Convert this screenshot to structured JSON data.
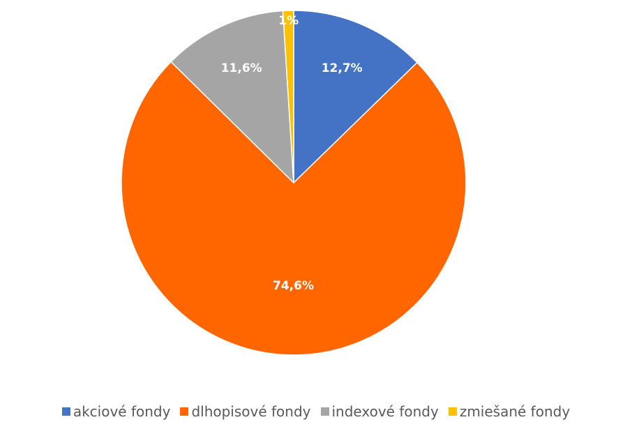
{
  "chart_data": {
    "type": "pie",
    "categories": [
      "akciové fondy",
      "dlhopisové fondy",
      "indexové fondy",
      "zmiešané fondy"
    ],
    "values": [
      12.7,
      74.6,
      11.6,
      1
    ],
    "labels": [
      "12,7%",
      "74,6%",
      "11,6%",
      "1%"
    ],
    "colors": [
      "#4472C4",
      "#FF6600",
      "#A5A5A5",
      "#FFC000"
    ],
    "start_angle_deg": 0,
    "direction": "clockwise",
    "legend_position": "bottom"
  }
}
